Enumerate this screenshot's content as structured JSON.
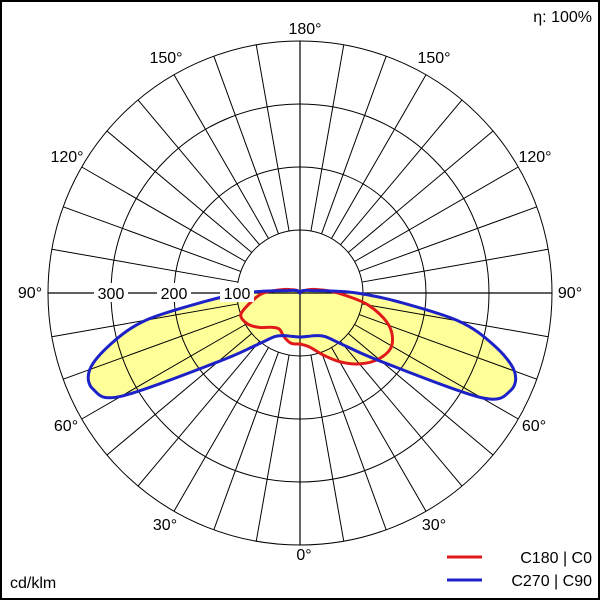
{
  "chart_data": {
    "type": "polar",
    "unit_label": "cd/klm",
    "efficiency_label": "η: 100%",
    "radial_ticks": [
      100,
      200,
      300
    ],
    "radial_max": 400,
    "radial_step": 100,
    "angle_labels": [
      "180°",
      "150°",
      "150°",
      "120°",
      "120°",
      "90°",
      "90°",
      "60°",
      "60°",
      "30°",
      "30°",
      "0°"
    ],
    "legend": [
      "C180 | C0",
      "C270 | C90"
    ],
    "colors": {
      "c0": "#e0191b",
      "c90": "#1d22c8",
      "fill": "#ffff99",
      "grid": "#000000"
    },
    "series": [
      {
        "name": "C180 | C0",
        "angles": [
          0,
          10,
          20,
          30,
          40,
          50,
          60,
          70,
          80,
          90,
          100,
          110,
          120,
          140,
          160,
          180
        ],
        "left": [
          81,
          81,
          74,
          66,
          71,
          85,
          97,
          100,
          78,
          58,
          30,
          16,
          10,
          4,
          1,
          0
        ],
        "right": [
          81,
          87,
          104,
          126,
          147,
          163,
          168,
          150,
          110,
          60,
          30,
          16,
          8,
          4,
          1,
          0
        ]
      },
      {
        "name": "C270 | C90",
        "angles": [
          0,
          10,
          20,
          30,
          40,
          50,
          60,
          65,
          70,
          75,
          80,
          85,
          90,
          95,
          100,
          110,
          120,
          140,
          160,
          180
        ],
        "left": [
          70,
          70,
          72,
          80,
          108,
          170,
          328,
          362,
          355,
          310,
          248,
          150,
          90,
          40,
          22,
          12,
          8,
          4,
          1,
          0
        ],
        "right": [
          70,
          70,
          72,
          80,
          108,
          170,
          332,
          368,
          362,
          318,
          255,
          155,
          90,
          40,
          22,
          12,
          8,
          4,
          1,
          0
        ]
      }
    ]
  }
}
